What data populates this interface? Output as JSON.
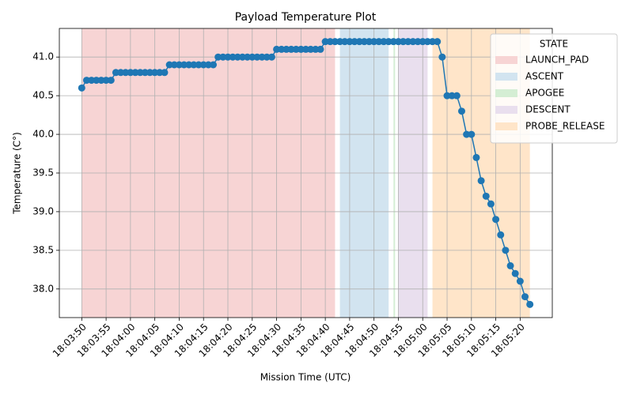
{
  "chart_data": {
    "type": "line",
    "title": "Payload Temperature Plot",
    "xlabel": "Mission Time (UTC)",
    "ylabel": "Temperature (C°)",
    "x": [
      "18:03:50",
      "18:03:51",
      "18:03:52",
      "18:03:53",
      "18:03:54",
      "18:03:55",
      "18:03:56",
      "18:03:57",
      "18:03:58",
      "18:03:59",
      "18:04:00",
      "18:04:01",
      "18:04:02",
      "18:04:03",
      "18:04:04",
      "18:04:05",
      "18:04:06",
      "18:04:07",
      "18:04:08",
      "18:04:09",
      "18:04:10",
      "18:04:11",
      "18:04:12",
      "18:04:13",
      "18:04:14",
      "18:04:15",
      "18:04:16",
      "18:04:17",
      "18:04:18",
      "18:04:19",
      "18:04:20",
      "18:04:21",
      "18:04:22",
      "18:04:23",
      "18:04:24",
      "18:04:25",
      "18:04:26",
      "18:04:27",
      "18:04:28",
      "18:04:29",
      "18:04:30",
      "18:04:31",
      "18:04:32",
      "18:04:33",
      "18:04:34",
      "18:04:35",
      "18:04:36",
      "18:04:37",
      "18:04:38",
      "18:04:39",
      "18:04:40",
      "18:04:41",
      "18:04:42",
      "18:04:43",
      "18:04:44",
      "18:04:45",
      "18:04:46",
      "18:04:47",
      "18:04:48",
      "18:04:49",
      "18:04:50",
      "18:04:51",
      "18:04:52",
      "18:04:53",
      "18:04:54",
      "18:04:55",
      "18:04:56",
      "18:04:57",
      "18:04:58",
      "18:04:59",
      "18:05:00",
      "18:05:01",
      "18:05:02",
      "18:05:03",
      "18:05:04",
      "18:05:05",
      "18:05:06",
      "18:05:07",
      "18:05:08",
      "18:05:09",
      "18:05:10",
      "18:05:11",
      "18:05:12",
      "18:05:13",
      "18:05:14",
      "18:05:15",
      "18:05:16",
      "18:05:17",
      "18:05:18",
      "18:05:19",
      "18:05:20",
      "18:05:21",
      "18:05:22"
    ],
    "series": [
      {
        "color": "#1f77b4",
        "values": [
          40.6,
          40.7,
          40.7,
          40.7,
          40.7,
          40.7,
          40.7,
          40.8,
          40.8,
          40.8,
          40.8,
          40.8,
          40.8,
          40.8,
          40.8,
          40.8,
          40.8,
          40.8,
          40.9,
          40.9,
          40.9,
          40.9,
          40.9,
          40.9,
          40.9,
          40.9,
          40.9,
          40.9,
          41.0,
          41.0,
          41.0,
          41.0,
          41.0,
          41.0,
          41.0,
          41.0,
          41.0,
          41.0,
          41.0,
          41.0,
          41.1,
          41.1,
          41.1,
          41.1,
          41.1,
          41.1,
          41.1,
          41.1,
          41.1,
          41.1,
          41.2,
          41.2,
          41.2,
          41.2,
          41.2,
          41.2,
          41.2,
          41.2,
          41.2,
          41.2,
          41.2,
          41.2,
          41.2,
          41.2,
          41.2,
          41.2,
          41.2,
          41.2,
          41.2,
          41.2,
          41.2,
          41.2,
          41.2,
          41.2,
          41.0,
          40.5,
          40.5,
          40.5,
          40.3,
          40.0,
          40.0,
          39.7,
          39.4,
          39.2,
          39.1,
          38.9,
          38.7,
          38.5,
          38.3,
          38.2,
          38.1,
          37.9,
          37.8
        ]
      }
    ],
    "spans": [
      {
        "name": "LAUNCH_PAD",
        "start": "18:03:50",
        "end": "18:04:42",
        "color": "#f7d4d4"
      },
      {
        "name": "ASCENT",
        "start": "18:04:43",
        "end": "18:04:53",
        "color": "#d2e4f0"
      },
      {
        "name": "APOGEE",
        "start": "18:04:54",
        "end": "18:04:54",
        "color": "#d4eed4"
      },
      {
        "name": "DESCENT",
        "start": "18:04:55",
        "end": "18:05:01",
        "color": "#e9dfee"
      },
      {
        "name": "PROBE_RELEASE",
        "start": "18:05:02",
        "end": "18:05:22",
        "color": "#ffe5c9"
      }
    ],
    "legend_title": "STATE",
    "legend": "upper right",
    "grid": true,
    "xlim": [
      "18:03:45.4",
      "18:05:26.6"
    ],
    "xticks": [
      "18:03:50",
      "18:03:55",
      "18:04:00",
      "18:04:05",
      "18:04:10",
      "18:04:15",
      "18:04:20",
      "18:04:25",
      "18:04:30",
      "18:04:35",
      "18:04:40",
      "18:04:45",
      "18:04:50",
      "18:04:55",
      "18:05:00",
      "18:05:05",
      "18:05:10",
      "18:05:15",
      "18:05:20"
    ],
    "ylim": [
      37.63,
      41.37
    ],
    "yticks": [
      {
        "value": 38,
        "label": "38.0"
      },
      38.5,
      {
        "value": 39,
        "label": "39.0"
      },
      39.5,
      {
        "value": 40,
        "label": "40.0"
      },
      40.5,
      {
        "value": 41,
        "label": "41.0"
      }
    ]
  }
}
